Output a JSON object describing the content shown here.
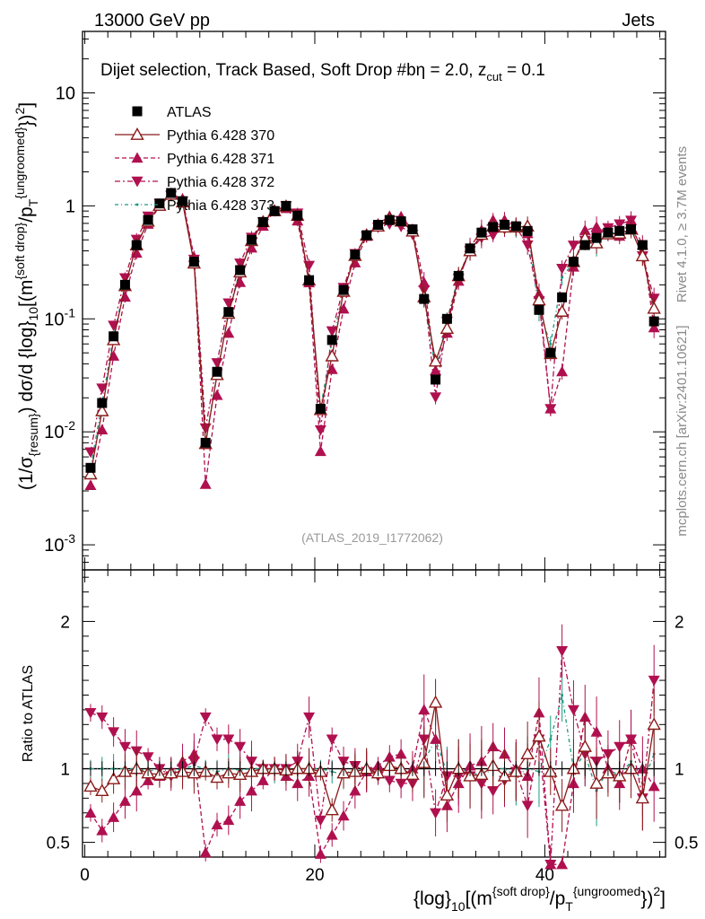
{
  "header": {
    "left": "13000 GeV pp",
    "right": "Jets"
  },
  "plot": {
    "title": "Dijet selection, Track Based, Soft Drop #b",
    "title_beta": "η = 2.0, z",
    "title_zsub": "cut",
    "title_zval": " = 0.1",
    "watermark": "(ATLAS_2019_I1772062)",
    "side_rivet": "Rivet 4.1.0, ≥ 3.7M events",
    "side_mcplots": "mcplots.cern.ch [arXiv:2401.10621]"
  },
  "legend": [
    {
      "label": "ATLAS",
      "color": "#000000",
      "marker": "square"
    },
    {
      "label": "Pythia 6.428 370",
      "color": "#8b1a1a",
      "marker": "triangle-open"
    },
    {
      "label": "Pythia 6.428 371",
      "color": "#b0104f",
      "marker": "triangle"
    },
    {
      "label": "Pythia 6.428 372",
      "color": "#b0104f",
      "marker": "triangle-down"
    },
    {
      "label": "Pythia 6.428 373",
      "color": "#1a9a80",
      "marker": "none"
    }
  ],
  "chart_data": {
    "type": "scatter",
    "xlabel": "{log}_{10}[(m^{soft drop}/p_T^{ungroomed})^2]",
    "ylabel": "(1/σ_{resum}) dσ/d {log}_{10}[(m^{soft drop}/p_T^{ungroomed})^2]",
    "ratio_ylabel": "Ratio to ATLAS",
    "xlim": [
      -0.2,
      50.5
    ],
    "ylim_log": [
      0.0006,
      35
    ],
    "ratio_ylim": [
      0.4,
      2.35
    ],
    "x_ticks": [
      "0",
      "20",
      "40"
    ],
    "y_ticks": [
      "10^{-3}",
      "10^{-2}",
      "10^{-1}",
      "1",
      "10"
    ],
    "ratio_ticks": [
      "0.5",
      "1",
      "2"
    ],
    "x": [
      0.5,
      1.5,
      2.5,
      3.5,
      4.5,
      5.5,
      6.5,
      7.5,
      8.5,
      9.5,
      10.5,
      11.5,
      12.5,
      13.5,
      14.5,
      15.5,
      16.5,
      17.5,
      18.5,
      19.5,
      20.5,
      21.5,
      22.5,
      23.5,
      24.5,
      25.5,
      26.5,
      27.5,
      28.5,
      29.5,
      30.5,
      31.5,
      32.5,
      33.5,
      34.5,
      35.5,
      36.5,
      37.5,
      38.5,
      39.5,
      40.5,
      41.5,
      42.5,
      43.5,
      44.5,
      45.5,
      46.5,
      47.5,
      48.5,
      49.5
    ],
    "series": [
      {
        "name": "ATLAS",
        "values": [
          0.0048,
          0.018,
          0.07,
          0.2,
          0.45,
          0.75,
          1.05,
          1.3,
          1.1,
          0.32,
          0.008,
          0.034,
          0.115,
          0.27,
          0.5,
          0.72,
          0.9,
          1.0,
          0.82,
          0.22,
          0.016,
          0.065,
          0.18,
          0.37,
          0.55,
          0.68,
          0.75,
          0.73,
          0.62,
          0.15,
          0.029,
          0.1,
          0.24,
          0.42,
          0.58,
          0.65,
          0.68,
          0.66,
          0.6,
          0.12,
          0.05,
          0.155,
          0.32,
          0.45,
          0.52,
          0.58,
          0.6,
          0.62,
          0.45,
          0.095
        ],
        "ratio": [
          1,
          1,
          1,
          1,
          1,
          1,
          1,
          1,
          1,
          1,
          1,
          1,
          1,
          1,
          1,
          1,
          1,
          1,
          1,
          1,
          1,
          1,
          1,
          1,
          1,
          1,
          1,
          1,
          1,
          1,
          1,
          1,
          1,
          1,
          1,
          1,
          1,
          1,
          1,
          1,
          1,
          1,
          1,
          1,
          1,
          1,
          1,
          1,
          1,
          1
        ]
      },
      {
        "name": "Pythia 6.428 370",
        "ratio": [
          0.88,
          0.85,
          0.93,
          0.98,
          1.0,
          0.97,
          0.96,
          0.97,
          0.98,
          0.97,
          0.98,
          0.94,
          0.97,
          0.96,
          0.98,
          1.0,
          1.0,
          0.99,
          1.0,
          1.0,
          0.98,
          0.72,
          0.97,
          0.98,
          1.0,
          0.97,
          1.02,
          1.0,
          0.96,
          1.04,
          1.45,
          0.82,
          1.0,
          0.95,
          0.96,
          1.02,
          0.95,
          0.98,
          1.1,
          1.22,
          0.98,
          0.75,
          1.0,
          1.15,
          0.9,
          0.97,
          0.95,
          1.0,
          0.8,
          1.3
        ]
      },
      {
        "name": "Pythia 6.428 371",
        "ratio": [
          0.7,
          0.58,
          0.67,
          0.78,
          0.85,
          0.92,
          0.95,
          0.98,
          1.05,
          1.1,
          0.43,
          0.62,
          0.65,
          0.78,
          0.85,
          0.92,
          1.0,
          0.95,
          0.9,
          0.95,
          0.42,
          0.55,
          0.68,
          0.85,
          0.98,
          1.02,
          1.08,
          1.1,
          1.0,
          1.4,
          1.2,
          0.75,
          0.9,
          1.02,
          1.05,
          1.15,
          1.1,
          1.0,
          0.95,
          1.38,
          0.32,
          0.22,
          0.9,
          1.35,
          1.25,
          1.0,
          0.9,
          1.2,
          1.0,
          0.88
        ]
      },
      {
        "name": "Pythia 6.428 372",
        "ratio": [
          1.38,
          1.35,
          1.25,
          1.15,
          1.12,
          1.08,
          1.0,
          0.95,
          1.0,
          1.05,
          1.35,
          1.2,
          1.2,
          1.15,
          1.05,
          1.0,
          1.0,
          1.0,
          1.05,
          1.35,
          0.65,
          1.2,
          1.05,
          1.02,
          0.98,
          0.95,
          0.92,
          0.9,
          0.9,
          1.2,
          0.7,
          0.95,
          0.95,
          0.95,
          0.9,
          0.85,
          0.92,
          0.98,
          0.75,
          1.2,
          0.32,
          1.8,
          1.4,
          1.1,
          1.05,
          1.1,
          1.15,
          1.2,
          0.8,
          1.6
        ]
      },
      {
        "name": "Pythia 6.428 373",
        "ratio": [
          1.0,
          1.0,
          1.0,
          1.0,
          1.0,
          0.98,
          1.0,
          0.98,
          1.0,
          1.02,
          1.0,
          0.98,
          1.0,
          0.99,
          1.0,
          1.0,
          0.98,
          1.0,
          1.0,
          1.0,
          1.0,
          0.98,
          0.96,
          1.0,
          1.0,
          0.98,
          1.0,
          0.98,
          0.97,
          1.05,
          1.2,
          0.97,
          1.0,
          0.98,
          0.95,
          1.0,
          1.0,
          0.95,
          1.0,
          0.98,
          1.2,
          1.5,
          1.0,
          1.1,
          0.85,
          1.0,
          0.95,
          1.05,
          0.9,
          1.1
        ]
      }
    ]
  }
}
